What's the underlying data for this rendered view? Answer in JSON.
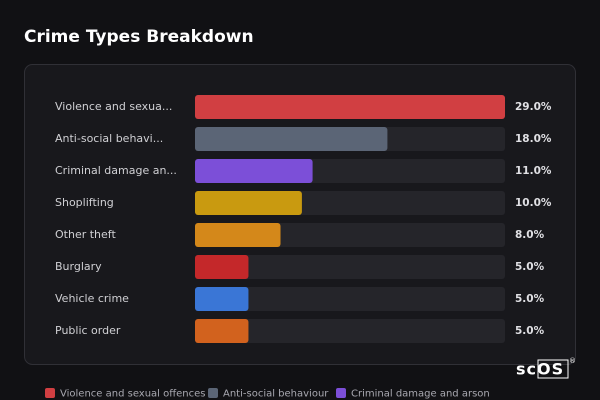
{
  "chart_data": {
    "type": "bar",
    "orientation": "horizontal",
    "title": "Crime Types Breakdown",
    "categories": [
      "Violence and sexua...",
      "Anti-social behavi...",
      "Criminal damage an...",
      "Shoplifting",
      "Other theft",
      "Burglary",
      "Vehicle crime",
      "Public order"
    ],
    "values": [
      29.0,
      18.0,
      11.0,
      10.0,
      8.0,
      5.0,
      5.0,
      5.0
    ],
    "value_labels": [
      "29.0%",
      "18.0%",
      "11.0%",
      "10.0%",
      "8.0%",
      "5.0%",
      "5.0%",
      "5.0%"
    ],
    "colors": [
      "#d13f42",
      "#5b6576",
      "#7c4fd8",
      "#c99a10",
      "#d4881a",
      "#c4282a",
      "#3a76d6",
      "#d2621e"
    ],
    "xlim": [
      0,
      29
    ],
    "legend": [
      "Violence and sexual offences",
      "Anti-social behaviour",
      "Criminal damage and arson"
    ],
    "watermark": "scOS",
    "watermark_mark": "®"
  }
}
